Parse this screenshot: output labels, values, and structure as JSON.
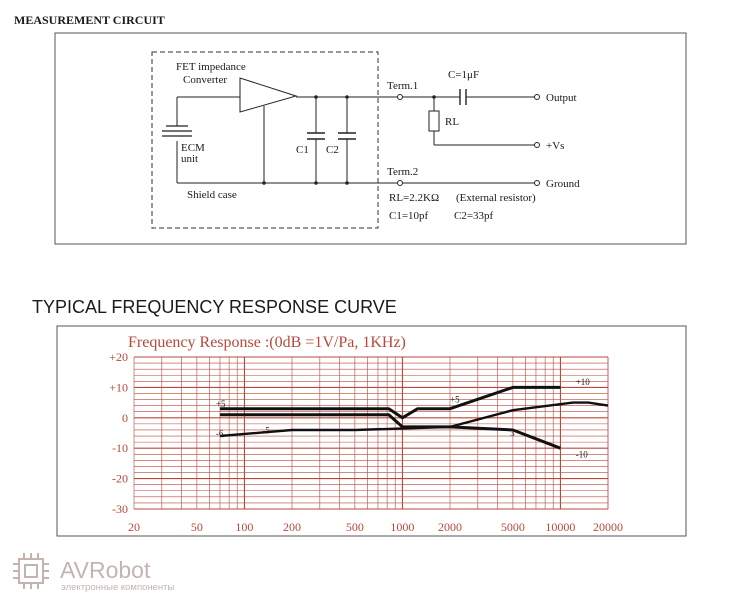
{
  "circuit": {
    "title": "MEASUREMENT CIRCUIT",
    "labels": {
      "fet_line1": "FET impedance",
      "fet_line2": "Converter",
      "ecm_line1": "ECM",
      "ecm_line2": "unit",
      "c1": "C1",
      "c2": "C2",
      "shield": "Shield case",
      "term1": "Term.1",
      "term2": "Term.2",
      "cap": "C=1μF",
      "rl": "RL",
      "output": "Output",
      "vs": "+Vs",
      "ground": "Ground",
      "rl_value": "RL=2.2KΩ",
      "external": "(External resistor)",
      "c1_value": "C1=10pf",
      "c2_value": "C2=33pf"
    }
  },
  "response": {
    "heading": "TYPICAL FREQUENCY RESPONSE CURVE",
    "chart_title": "Frequency  Response :(0dB =1V/Pa, 1KHz)"
  },
  "chart_data": {
    "type": "line",
    "title": "Frequency  Response :(0dB =1V/Pa, 1KHz)",
    "xscale": "log",
    "xlim": [
      20,
      20000
    ],
    "ylim": [
      -30,
      20
    ],
    "x_ticks": [
      "20",
      "50",
      "100",
      "200",
      "500",
      "1000",
      "2000",
      "5000",
      "10000",
      "20000"
    ],
    "x_tick_values": [
      20,
      50,
      100,
      200,
      500,
      1000,
      2000,
      5000,
      10000,
      20000
    ],
    "y_ticks": [
      "+20",
      "+10",
      "0",
      "-10",
      "-20",
      "-30"
    ],
    "y_tick_values": [
      20,
      10,
      0,
      -10,
      -20,
      -30
    ],
    "grid": true,
    "series": [
      {
        "style": "thick",
        "x": [
          70,
          820,
          1000,
          1250,
          2000,
          5000,
          10000
        ],
        "y": [
          3,
          3,
          0,
          3,
          3,
          10,
          10
        ]
      },
      {
        "style": "thick",
        "x": [
          70,
          820,
          1000,
          1250,
          2000,
          5000,
          10000
        ],
        "y": [
          1,
          1,
          -3,
          -3,
          -3,
          -4,
          -10
        ]
      },
      {
        "style": "medium",
        "x": [
          70,
          200,
          500,
          2000,
          5000,
          12000,
          15000,
          20000
        ],
        "y": [
          -6,
          -4,
          -4,
          -3,
          2.5,
          5,
          5,
          4
        ]
      }
    ],
    "annotations": [
      {
        "text": "+5",
        "x": 66,
        "y": 3.5
      },
      {
        "text": "-6",
        "x": 66,
        "y": -6.2
      },
      {
        "text": "-5",
        "x": 130,
        "y": -5.2
      },
      {
        "text": "+5",
        "x": 2000,
        "y": 5
      },
      {
        "text": "3",
        "x": 4800,
        "y": -6
      },
      {
        "text": "+10",
        "x": 12500,
        "y": 10.8
      },
      {
        "text": "-10",
        "x": 12500,
        "y": -13
      }
    ]
  },
  "watermark": {
    "brand": "AVRobot",
    "tagline": "электронные компоненты"
  },
  "colors": {
    "chart_grid": "#b8483a",
    "chart_text": "#b8483a",
    "curve": "#111111",
    "frame": "#555555",
    "watermark": "#c3b4b0"
  }
}
